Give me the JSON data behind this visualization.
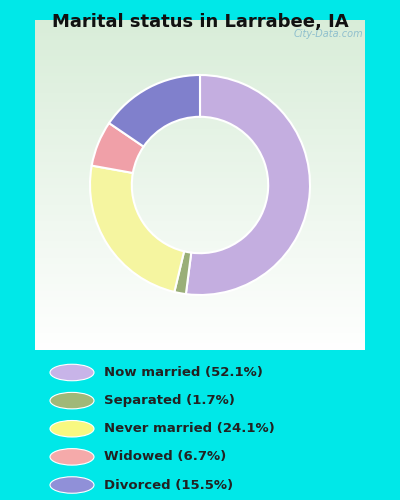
{
  "title": "Marital status in Larrabee, IA",
  "slices": [
    52.1,
    1.7,
    24.1,
    6.7,
    15.5
  ],
  "labels": [
    "Now married (52.1%)",
    "Separated (1.7%)",
    "Never married (24.1%)",
    "Widowed (6.7%)",
    "Divorced (15.5%)"
  ],
  "colors": [
    "#c4aee0",
    "#9aaf78",
    "#f5f5a0",
    "#f0a0a8",
    "#8080cc"
  ],
  "legend_colors": [
    "#c8b4e8",
    "#a0b878",
    "#f8f880",
    "#f5aaaa",
    "#9090d8"
  ],
  "border_color": "#00e8e8",
  "chart_bg": "#d8edd8",
  "legend_bg": "#00e8e8",
  "title_fontsize": 13,
  "watermark": "City-Data.com",
  "startangle": 90,
  "donut_width": 0.38
}
